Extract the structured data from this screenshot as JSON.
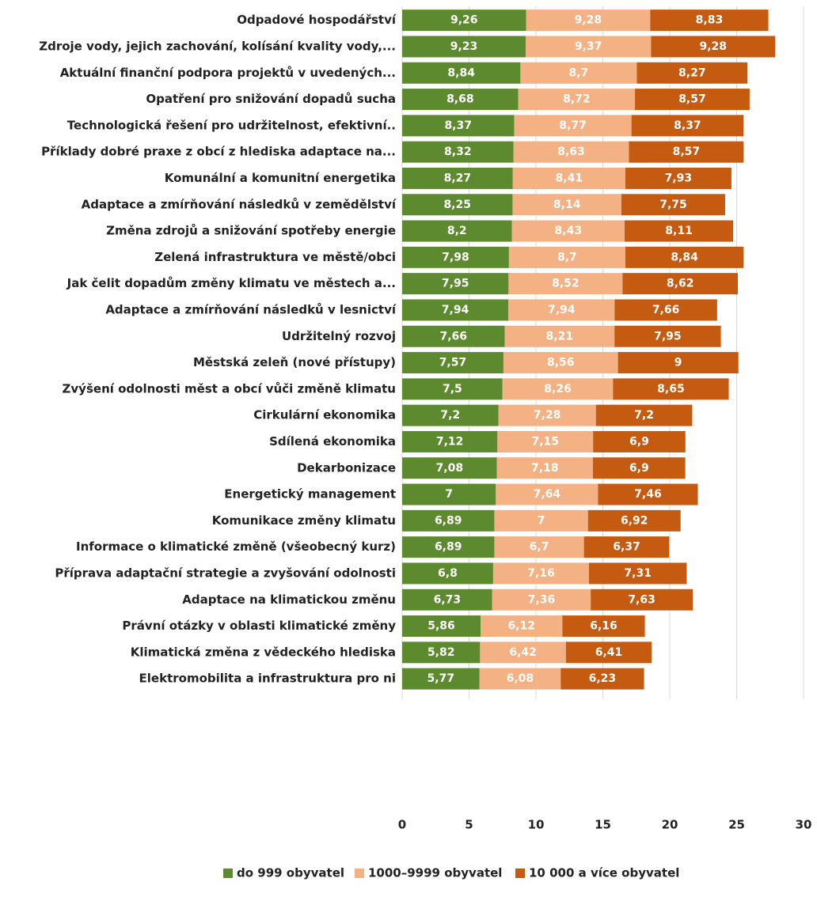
{
  "chart_data": {
    "type": "stacked-bar-horizontal",
    "categories": [
      "Odpadové hospodářství",
      "Zdroje vody, jejich zachování, kolísání kvality vody,...",
      "Aktuální finanční podpora projektů v uvedených...",
      "Opatření pro snižování dopadů sucha",
      "Technologická řešení pro udržitelnost, efektivní..",
      "Příklady dobré praxe z obcí z hlediska adaptace na...",
      "Komunální a komunitní energetika",
      "Adaptace a zmírňování následků v zemědělství",
      "Změna zdrojů a snižování spotřeby energie",
      "Zelená infrastruktura ve městě/obci",
      "Jak čelit dopadům změny klimatu ve městech a...",
      "Adaptace a zmírňování následků v lesnictví",
      "Udržitelný rozvoj",
      "Městská zeleň (nové přístupy)",
      "Zvýšení odolnosti měst a obcí vůči změně klimatu",
      "Cirkulární ekonomika",
      "Sdílená ekonomika",
      "Dekarbonizace",
      "Energetický management",
      "Komunikace změny klimatu",
      "Informace o klimatické změně (všeobecný kurz)",
      "Příprava adaptační strategie a zvyšování odolnosti",
      "Adaptace na klimatickou změnu",
      "Právní otázky v oblasti klimatické změny",
      "Klimatická změna z vědeckého hlediska",
      "Elektromobilita a infrastruktura pro ni"
    ],
    "series": [
      {
        "name": "do 999 obyvatel",
        "color": "#5e8a2f",
        "values": [
          9.26,
          9.23,
          8.84,
          8.68,
          8.37,
          8.32,
          8.27,
          8.25,
          8.2,
          7.98,
          7.95,
          7.94,
          7.66,
          7.57,
          7.5,
          7.2,
          7.12,
          7.08,
          7,
          6.89,
          6.89,
          6.8,
          6.73,
          5.86,
          5.82,
          5.77
        ],
        "value_labels": [
          "9,26",
          "9,23",
          "8,84",
          "8,68",
          "8,37",
          "8,32",
          "8,27",
          "8,25",
          "8,2",
          "7,98",
          "7,95",
          "7,94",
          "7,66",
          "7,57",
          "7,5",
          "7,2",
          "7,12",
          "7,08",
          "7",
          "6,89",
          "6,89",
          "6,8",
          "6,73",
          "5,86",
          "5,82",
          "5,77"
        ]
      },
      {
        "name": "1000–9999 obyvatel",
        "color": "#f4b183",
        "values": [
          9.28,
          9.37,
          8.7,
          8.72,
          8.77,
          8.63,
          8.41,
          8.14,
          8.43,
          8.7,
          8.52,
          7.94,
          8.21,
          8.56,
          8.26,
          7.28,
          7.15,
          7.18,
          7.64,
          7,
          6.7,
          7.16,
          7.36,
          6.12,
          6.42,
          6.08
        ],
        "value_labels": [
          "9,28",
          "9,37",
          "8,7",
          "8,72",
          "8,77",
          "8,63",
          "8,41",
          "8,14",
          "8,43",
          "8,7",
          "8,52",
          "7,94",
          "8,21",
          "8,56",
          "8,26",
          "7,28",
          "7,15",
          "7,18",
          "7,64",
          "7",
          "6,7",
          "7,16",
          "7,36",
          "6,12",
          "6,42",
          "6,08"
        ]
      },
      {
        "name": "10 000 a více obyvatel",
        "color": "#c55a11",
        "values": [
          8.83,
          9.28,
          8.27,
          8.57,
          8.37,
          8.57,
          7.93,
          7.75,
          8.11,
          8.84,
          8.62,
          7.66,
          7.95,
          9,
          8.65,
          7.2,
          6.9,
          6.9,
          7.46,
          6.92,
          6.37,
          7.31,
          7.63,
          6.16,
          6.41,
          6.23
        ],
        "value_labels": [
          "8,83",
          "9,28",
          "8,27",
          "8,57",
          "8,37",
          "8,57",
          "7,93",
          "7,75",
          "8,11",
          "8,84",
          "8,62",
          "7,66",
          "7,95",
          "9",
          "8,65",
          "7,2",
          "6,9",
          "6,9",
          "7,46",
          "6,92",
          "6,37",
          "7,31",
          "7,63",
          "6,16",
          "6,41",
          "6,23"
        ]
      }
    ],
    "xlim": [
      0,
      30
    ],
    "xticks": [
      0,
      5,
      10,
      15,
      20,
      25,
      30
    ],
    "grid": true,
    "legend": "bottom"
  }
}
